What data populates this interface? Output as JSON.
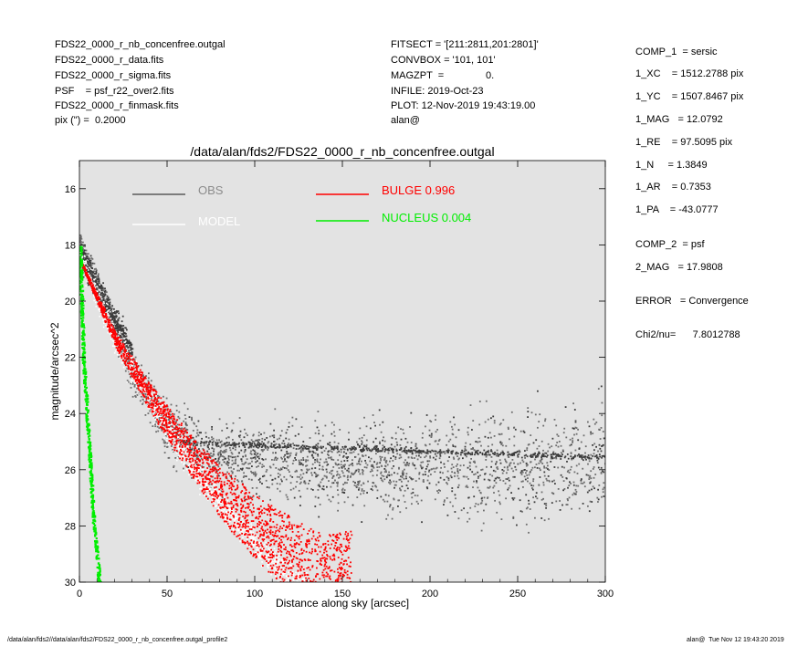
{
  "header_left": [
    "FDS22_0000_r_nb_concenfree.outgal",
    "FDS22_0000_r_data.fits",
    "FDS22_0000_r_sigma.fits",
    "PSF    = psf_r22_over2.fits",
    "FDS22_0000_r_finmask.fits",
    "pix (\") =  0.2000"
  ],
  "header_mid": [
    "FITSECT = '[211:2811,201:2801]'",
    "CONVBOX = '101, 101'",
    "MAGZPT  =               0.",
    "INFILE: 2019-Oct-23",
    "PLOT: 12-Nov-2019 19:43:19.00",
    "alan@"
  ],
  "params_comp1": [
    "COMP_1  = sersic",
    "1_XC    = 1512.2788 pix",
    "1_YC    = 1507.8467 pix",
    "1_MAG   = 12.0792",
    "1_RE    = 97.5095 pix",
    "1_N     = 1.3849",
    "1_AR    = 0.7353",
    "1_PA    = -43.0777"
  ],
  "params_comp2": [
    "COMP_2  = psf",
    "2_MAG   = 17.9808"
  ],
  "error_line": "ERROR   = Convergence",
  "chi_line": "Chi2/nu=      7.8012788",
  "footer_left": "/data/alan/fds2//data/alan/fds2/FDS22_0000_r_nb_concenfree.outgal_profile2",
  "footer_right": "alan@  Tue Nov 12 19:43:20 2019",
  "colors": {
    "plot_bg": "#e3e3e3",
    "obs": "#6e6e6e",
    "model": "#ffffff",
    "bulge": "#ff0000",
    "nucleus": "#00ee00"
  },
  "chart_data": {
    "type": "scatter",
    "title": "/data/alan/fds2/FDS22_0000_r_nb_concenfree.outgal",
    "xlabel": "Distance along sky [arcsec]",
    "ylabel": "magnitude/arcsec^2",
    "xlim": [
      0,
      300
    ],
    "ylim": [
      30,
      15
    ],
    "y_inverted": true,
    "grid": false,
    "legend_position": "top",
    "x_ticks": [
      0,
      50,
      100,
      150,
      200,
      250,
      300
    ],
    "y_ticks": [
      16,
      18,
      20,
      22,
      24,
      26,
      28,
      30
    ],
    "series": [
      {
        "name": "OBS",
        "color": "#6e6e6e",
        "description_points": [
          [
            0,
            18.0
          ],
          [
            10,
            19.5
          ],
          [
            20,
            21.0
          ],
          [
            30,
            22.5
          ],
          [
            50,
            24.5
          ],
          [
            70,
            25.4
          ],
          [
            100,
            25.6
          ],
          [
            150,
            25.8
          ],
          [
            200,
            25.9
          ],
          [
            250,
            25.9
          ],
          [
            300,
            25.7
          ]
        ]
      },
      {
        "name": "MODEL",
        "color": "#ffffff",
        "description_points": [
          [
            0,
            18.4
          ],
          [
            20,
            21.3
          ],
          [
            40,
            23.6
          ],
          [
            60,
            25.5
          ],
          [
            80,
            27.2
          ],
          [
            100,
            28.6
          ],
          [
            120,
            29.9
          ]
        ]
      },
      {
        "name": "BULGE",
        "value_label": "0.996",
        "color": "#ff0000",
        "description_points": [
          [
            0,
            18.5
          ],
          [
            20,
            21.3
          ],
          [
            40,
            23.4
          ],
          [
            60,
            25.2
          ],
          [
            80,
            26.8
          ],
          [
            100,
            28.0
          ],
          [
            120,
            29.0
          ],
          [
            140,
            29.9
          ]
        ]
      },
      {
        "name": "NUCLEUS",
        "value_label": "0.004",
        "color": "#00ee00",
        "description_points": [
          [
            0,
            18.0
          ],
          [
            1,
            20.0
          ],
          [
            2,
            22.0
          ],
          [
            4,
            24.0
          ],
          [
            6,
            26.0
          ],
          [
            8,
            28.0
          ],
          [
            10,
            29.2
          ],
          [
            11,
            30.0
          ]
        ]
      }
    ]
  }
}
